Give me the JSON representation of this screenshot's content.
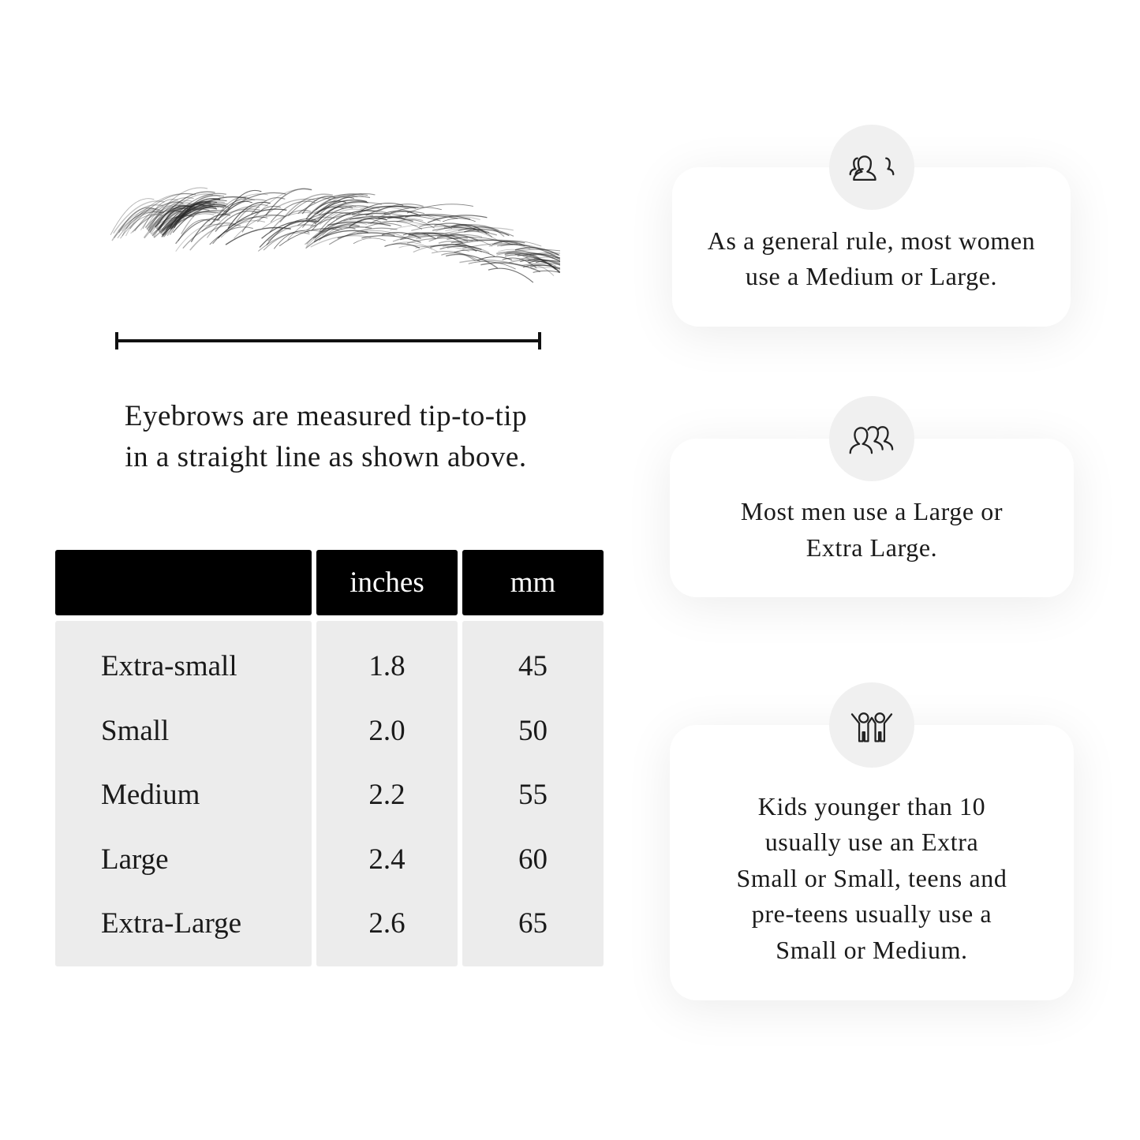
{
  "caption": {
    "line1": "Eyebrows are measured tip-to-tip",
    "line2": "in a straight line as shown above."
  },
  "table": {
    "headers": [
      "",
      "inches",
      "mm"
    ],
    "rows": [
      {
        "size": "Extra-small",
        "inches": "1.8",
        "mm": "45"
      },
      {
        "size": "Small",
        "inches": "2.0",
        "mm": "50"
      },
      {
        "size": "Medium",
        "inches": "2.2",
        "mm": "55"
      },
      {
        "size": "Large",
        "inches": "2.4",
        "mm": "60"
      },
      {
        "size": "Extra-Large",
        "inches": "2.6",
        "mm": "65"
      }
    ]
  },
  "cards": [
    {
      "icon": "women-group-icon",
      "lines": [
        "As a general rule, most women",
        "use a Medium or Large."
      ]
    },
    {
      "icon": "men-group-icon",
      "lines": [
        "Most men use a Large or",
        "Extra Large."
      ]
    },
    {
      "icon": "kids-icon",
      "lines": [
        "Kids younger than 10",
        "usually use an Extra",
        "Small or Small, teens and",
        "pre-teens usually use a",
        "Small or Medium."
      ]
    }
  ],
  "colors": {
    "header": "#000000",
    "body": "#ececec",
    "circle": "#f0f0f0"
  }
}
